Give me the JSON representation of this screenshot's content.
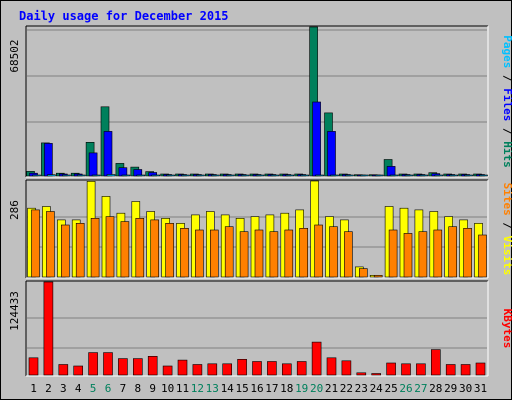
{
  "chart_data": {
    "type": "bar",
    "title": "Daily usage for December 2015",
    "categories": [
      "1",
      "2",
      "3",
      "4",
      "5",
      "6",
      "7",
      "8",
      "9",
      "10",
      "11",
      "12",
      "13",
      "14",
      "15",
      "16",
      "17",
      "18",
      "19",
      "20",
      "21",
      "22",
      "23",
      "24",
      "25",
      "26",
      "27",
      "28",
      "29",
      "30",
      "31"
    ],
    "weekend_days": [
      "5",
      "6",
      "12",
      "13",
      "19",
      "20",
      "26",
      "27"
    ],
    "panels": [
      {
        "id": "hits-files-pages",
        "ymax_label": "68502",
        "ymax": 68502,
        "side_labels": [
          "Pages",
          "Files",
          "Hits"
        ],
        "series": [
          {
            "name": "Hits",
            "color": "#00805c",
            "values": [
              2100,
              15200,
              1300,
              1300,
              15500,
              31800,
              5800,
              4100,
              2000,
              900,
              900,
              900,
              900,
              900,
              900,
              900,
              900,
              900,
              900,
              68502,
              29000,
              900,
              600,
              600,
              7600,
              900,
              900,
              1500,
              900,
              900,
              900
            ]
          },
          {
            "name": "Files",
            "color": "#0000ff",
            "values": [
              1300,
              15000,
              900,
              900,
              10600,
              20500,
              3800,
              3000,
              1600,
              700,
              700,
              700,
              700,
              700,
              700,
              700,
              700,
              700,
              700,
              34000,
              20500,
              700,
              400,
              400,
              4400,
              700,
              700,
              1100,
              700,
              700,
              700
            ]
          },
          {
            "name": "Pages",
            "color": "#00c0ff",
            "values": [
              300,
              600,
              200,
              200,
              400,
              700,
              300,
              200,
              200,
              100,
              100,
              100,
              100,
              100,
              100,
              100,
              100,
              100,
              100,
              400,
              300,
              100,
              80,
              80,
              200,
              100,
              100,
              150,
              100,
              100,
              100
            ]
          }
        ]
      },
      {
        "id": "visits-sites",
        "ymax_label": "286",
        "ymax": 286,
        "side_labels": [
          "Sites",
          "Visits"
        ],
        "series": [
          {
            "name": "Visits",
            "color": "#ffff00",
            "values": [
              205,
              210,
              170,
              170,
              285,
              240,
              190,
              225,
              195,
              175,
              160,
              185,
              195,
              185,
              175,
              180,
              185,
              190,
              200,
              286,
              180,
              170,
              30,
              5,
              210,
              205,
              200,
              195,
              180,
              170,
              160
            ]
          },
          {
            "name": "Sites",
            "color": "#ff8000",
            "values": [
              200,
              195,
              155,
              160,
              175,
              180,
              165,
              175,
              170,
              160,
              145,
              140,
              140,
              150,
              135,
              140,
              135,
              140,
              145,
              155,
              150,
              135,
              25,
              5,
              140,
              130,
              135,
              140,
              150,
              145,
              125
            ]
          }
        ]
      },
      {
        "id": "kbytes",
        "ymax_label": "124433",
        "ymax": 124433,
        "side_labels": [
          "KBytes"
        ],
        "series": [
          {
            "name": "KBytes",
            "color": "#ff0000",
            "values": [
              23000,
              124433,
              14000,
              12000,
              30000,
              30000,
              22000,
              22000,
              25000,
              12000,
              20000,
              14000,
              15000,
              15000,
              21000,
              18000,
              18000,
              15000,
              18000,
              44000,
              23000,
              19000,
              3000,
              2000,
              16000,
              15000,
              15000,
              34000,
              14000,
              14000,
              16000
            ]
          }
        ]
      }
    ]
  }
}
